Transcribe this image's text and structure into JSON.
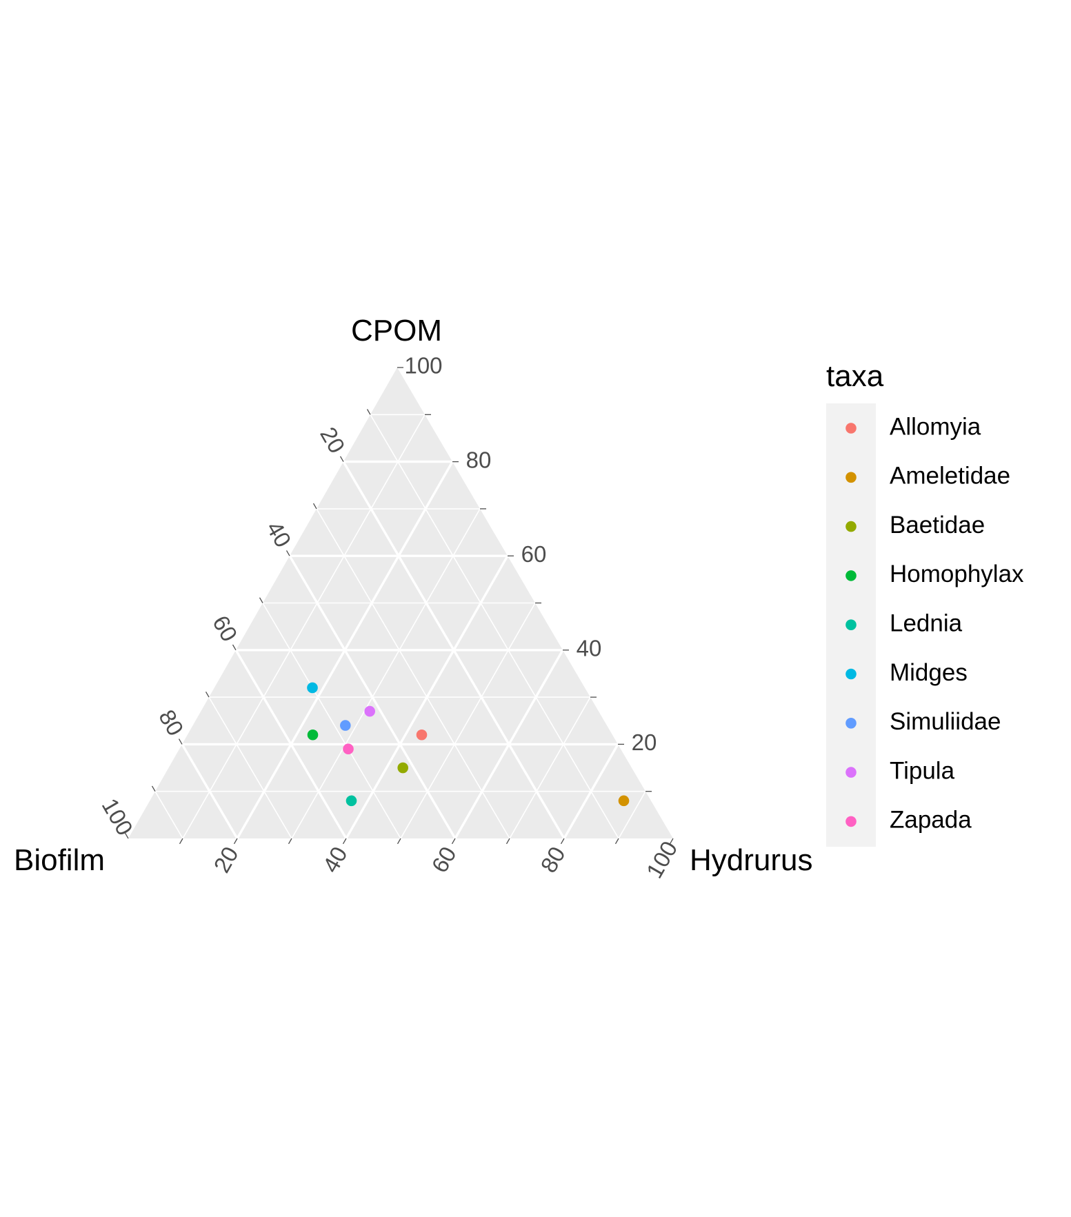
{
  "chart_data": {
    "type": "scatter",
    "subtype": "ternary",
    "axes": {
      "top": "CPOM",
      "left": "Biofilm",
      "right": "Hydrurus"
    },
    "ticks": [
      20,
      40,
      60,
      80,
      100
    ],
    "range": [
      0,
      100
    ],
    "grid": true,
    "legend": {
      "title": "taxa",
      "position": "right"
    },
    "points": [
      {
        "taxa": "Allomyia",
        "Biofilm": 35,
        "Hydrurus": 43,
        "CPOM": 22,
        "color": "#F8766D"
      },
      {
        "taxa": "Ameletidae",
        "Biofilm": 5,
        "Hydrurus": 87,
        "CPOM": 8,
        "color": "#D39200"
      },
      {
        "taxa": "Baetidae",
        "Biofilm": 42,
        "Hydrurus": 43,
        "CPOM": 15,
        "color": "#93AA00"
      },
      {
        "taxa": "Homophylax",
        "Biofilm": 55,
        "Hydrurus": 23,
        "CPOM": 22,
        "color": "#00BA38"
      },
      {
        "taxa": "Lednia",
        "Biofilm": 55,
        "Hydrurus": 37,
        "CPOM": 8,
        "color": "#00C19F"
      },
      {
        "taxa": "Midges",
        "Biofilm": 50,
        "Hydrurus": 18,
        "CPOM": 32,
        "color": "#00B9E3"
      },
      {
        "taxa": "Simuliidae",
        "Biofilm": 48,
        "Hydrurus": 28,
        "CPOM": 24,
        "color": "#619CFF"
      },
      {
        "taxa": "Tipula",
        "Biofilm": 42,
        "Hydrurus": 31,
        "CPOM": 27,
        "color": "#DB72FB"
      },
      {
        "taxa": "Zapada",
        "Biofilm": 50,
        "Hydrurus": 31,
        "CPOM": 19,
        "color": "#FF61C3"
      }
    ]
  }
}
